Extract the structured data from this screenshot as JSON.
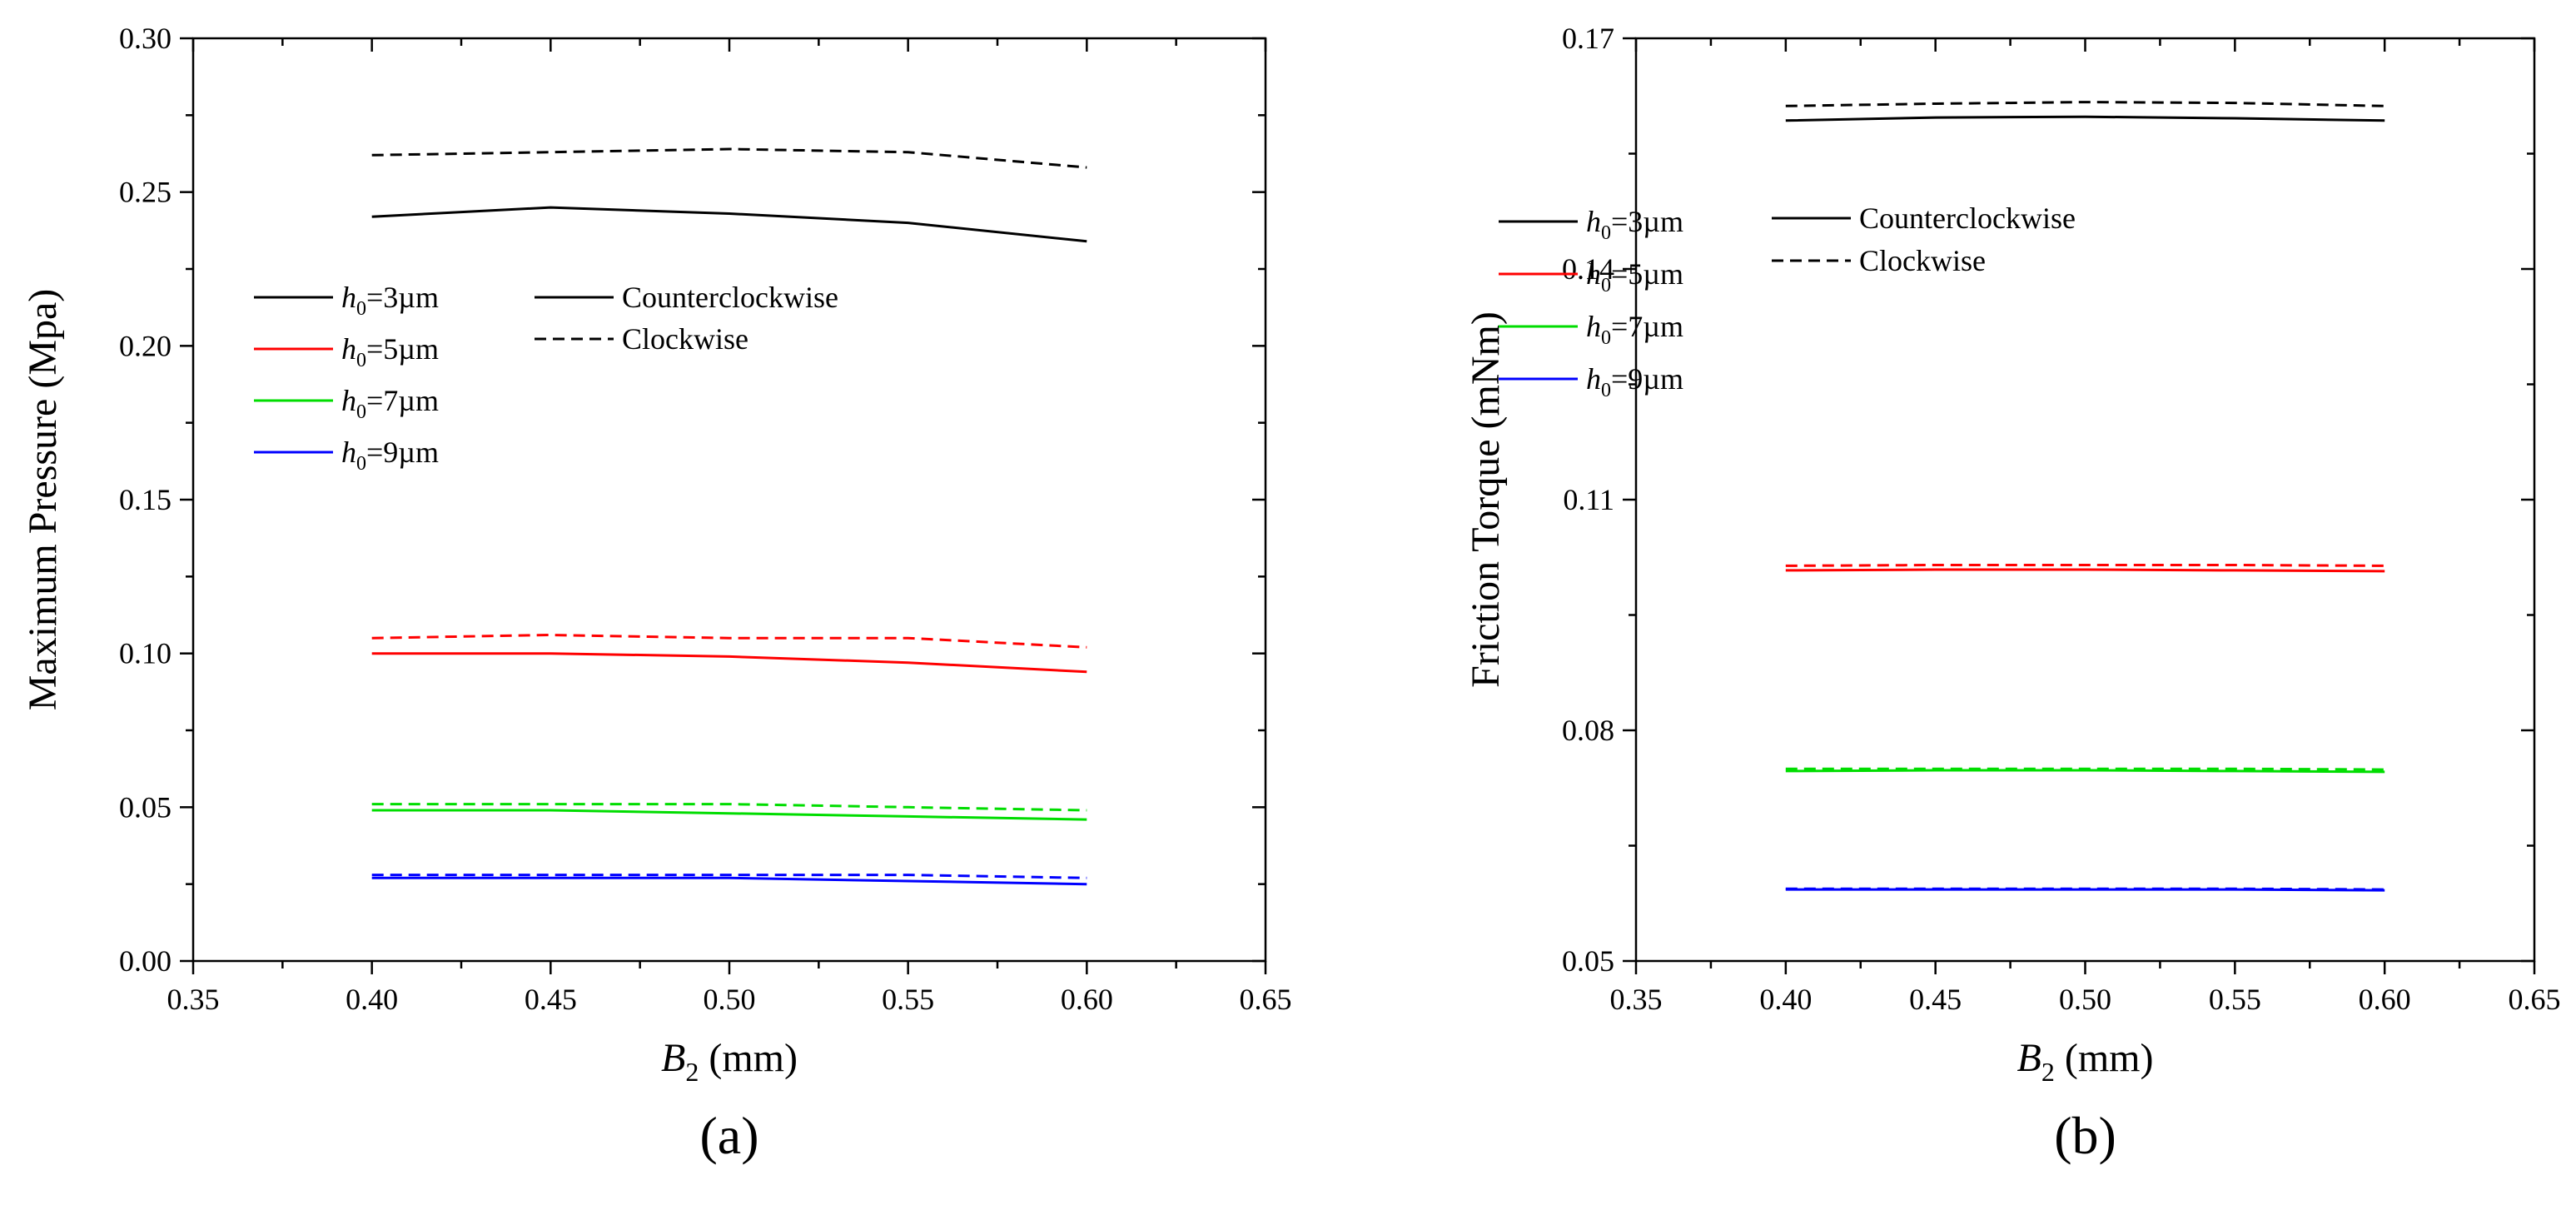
{
  "colors": {
    "h3": "#000000",
    "h5": "#ff0000",
    "h7": "#00dd00",
    "h9": "#0000ff",
    "axis": "#000000",
    "background": "#ffffff"
  },
  "legend_h0": [
    {
      "sym": "h",
      "sub": "0",
      "rest": "=3µm",
      "color_key": "h3"
    },
    {
      "sym": "h",
      "sub": "0",
      "rest": "=5µm",
      "color_key": "h5"
    },
    {
      "sym": "h",
      "sub": "0",
      "rest": "=7µm",
      "color_key": "h7"
    },
    {
      "sym": "h",
      "sub": "0",
      "rest": "=9µm",
      "color_key": "h9"
    }
  ],
  "legend_dir": [
    {
      "label": "Counterclockwise",
      "style": "solid"
    },
    {
      "label": "Clockwise",
      "style": "dashed"
    }
  ],
  "chart_data": [
    {
      "type": "line",
      "panel_label": "(a)",
      "xlabel_main": "B",
      "xlabel_sub": "2",
      "xlabel_unit": " (mm)",
      "ylabel": "Maximum Pressure (Mpa)",
      "xlim": [
        0.35,
        0.65
      ],
      "ylim": [
        0.0,
        0.3
      ],
      "xticks": [
        "0.35",
        "0.40",
        "0.45",
        "0.50",
        "0.55",
        "0.60",
        "0.65"
      ],
      "yticks": [
        "0.00",
        "0.05",
        "0.10",
        "0.15",
        "0.20",
        "0.25",
        "0.30"
      ],
      "x": [
        0.4,
        0.45,
        0.5,
        0.55,
        0.6
      ],
      "series": [
        {
          "name": "h0=3µm Counterclockwise",
          "color_key": "h3",
          "style": "solid",
          "values": [
            0.242,
            0.245,
            0.243,
            0.24,
            0.234
          ]
        },
        {
          "name": "h0=3µm Clockwise",
          "color_key": "h3",
          "style": "dashed",
          "values": [
            0.262,
            0.263,
            0.264,
            0.263,
            0.258
          ]
        },
        {
          "name": "h0=5µm Counterclockwise",
          "color_key": "h5",
          "style": "solid",
          "values": [
            0.1,
            0.1,
            0.099,
            0.097,
            0.094
          ]
        },
        {
          "name": "h0=5µm Clockwise",
          "color_key": "h5",
          "style": "dashed",
          "values": [
            0.105,
            0.106,
            0.105,
            0.105,
            0.102
          ]
        },
        {
          "name": "h0=7µm Counterclockwise",
          "color_key": "h7",
          "style": "solid",
          "values": [
            0.049,
            0.049,
            0.048,
            0.047,
            0.046
          ]
        },
        {
          "name": "h0=7µm Clockwise",
          "color_key": "h7",
          "style": "dashed",
          "values": [
            0.051,
            0.051,
            0.051,
            0.05,
            0.049
          ]
        },
        {
          "name": "h0=9µm Counterclockwise",
          "color_key": "h9",
          "style": "solid",
          "values": [
            0.027,
            0.027,
            0.027,
            0.026,
            0.025
          ]
        },
        {
          "name": "h0=9µm Clockwise",
          "color_key": "h9",
          "style": "dashed",
          "values": [
            0.028,
            0.028,
            0.028,
            0.028,
            0.027
          ]
        }
      ]
    },
    {
      "type": "line",
      "panel_label": "(b)",
      "xlabel_main": "B",
      "xlabel_sub": "2",
      "xlabel_unit": " (mm)",
      "ylabel": "Friction Torque (mNm)",
      "xlim": [
        0.35,
        0.65
      ],
      "ylim": [
        0.05,
        0.17
      ],
      "xticks": [
        "0.35",
        "0.40",
        "0.45",
        "0.50",
        "0.55",
        "0.60",
        "0.65"
      ],
      "yticks": [
        "0.05",
        "0.08",
        "0.11",
        "0.14",
        "0.17"
      ],
      "x": [
        0.4,
        0.45,
        0.5,
        0.55,
        0.6
      ],
      "series": [
        {
          "name": "h0=3µm Counterclockwise",
          "color_key": "h3",
          "style": "solid",
          "values": [
            0.1593,
            0.1597,
            0.1598,
            0.1596,
            0.1593
          ]
        },
        {
          "name": "h0=3µm Clockwise",
          "color_key": "h3",
          "style": "dashed",
          "values": [
            0.1612,
            0.1615,
            0.1617,
            0.1616,
            0.1612
          ]
        },
        {
          "name": "h0=5µm Counterclockwise",
          "color_key": "h5",
          "style": "solid",
          "values": [
            0.1008,
            0.1009,
            0.1009,
            0.1008,
            0.1007
          ]
        },
        {
          "name": "h0=5µm Clockwise",
          "color_key": "h5",
          "style": "dashed",
          "values": [
            0.1014,
            0.1015,
            0.1015,
            0.1015,
            0.1014
          ]
        },
        {
          "name": "h0=7µm Counterclockwise",
          "color_key": "h7",
          "style": "solid",
          "values": [
            0.0747,
            0.0748,
            0.0748,
            0.0747,
            0.0746
          ]
        },
        {
          "name": "h0=7µm Clockwise",
          "color_key": "h7",
          "style": "dashed",
          "values": [
            0.075,
            0.075,
            0.075,
            0.075,
            0.0749
          ]
        },
        {
          "name": "h0=9µm Counterclockwise",
          "color_key": "h9",
          "style": "solid",
          "values": [
            0.0593,
            0.0593,
            0.0593,
            0.0593,
            0.0592
          ]
        },
        {
          "name": "h0=9µm Clockwise",
          "color_key": "h9",
          "style": "dashed",
          "values": [
            0.0594,
            0.0594,
            0.0594,
            0.0594,
            0.0593
          ]
        }
      ]
    }
  ]
}
